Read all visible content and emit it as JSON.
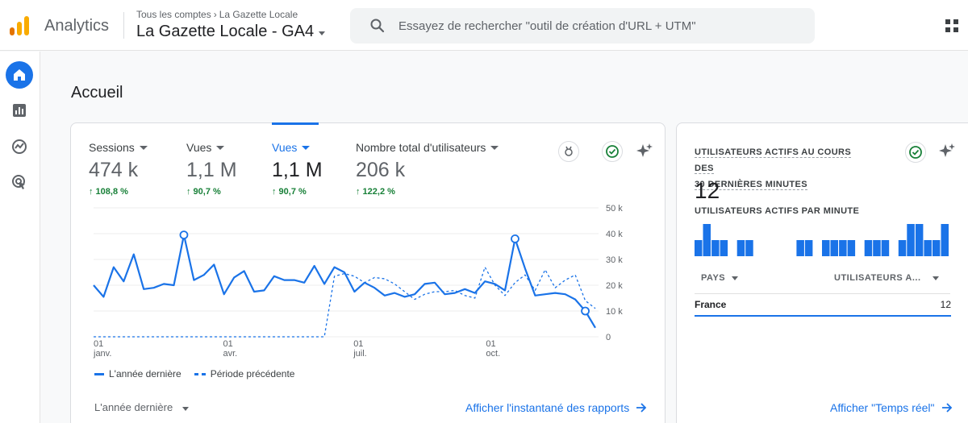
{
  "header": {
    "app_name": "Analytics",
    "breadcrumb": [
      "Tous les comptes",
      "La Gazette Locale"
    ],
    "property": "La Gazette Locale - GA4",
    "search_placeholder": "Essayez de rechercher \"outil de création d'URL + UTM\""
  },
  "rail": {
    "items": [
      "home-icon",
      "reports-icon",
      "explore-icon",
      "advertising-icon"
    ]
  },
  "page": {
    "title": "Accueil"
  },
  "main_card": {
    "metrics": [
      {
        "label": "Sessions",
        "value": "474 k",
        "delta": "↑ 108,8 %",
        "selected": false
      },
      {
        "label": "Vues",
        "value": "1,1 M",
        "delta": "↑ 90,7 %",
        "selected": false
      },
      {
        "label": "Vues",
        "value": "1,1 M",
        "delta": "↑ 90,7 %",
        "selected": true
      },
      {
        "label": "Nombre total d'utilisateurs",
        "value": "206 k",
        "delta": "↑ 122,2 %",
        "selected": false
      }
    ],
    "legend": {
      "current": "L'année dernière",
      "previous": "Période précédente"
    },
    "period_selector": "L'année dernière",
    "link": "Afficher l'instantané des rapports",
    "accent": "#1a73e8",
    "positive": "#188038"
  },
  "chart_data": {
    "type": "line",
    "y_ticks": [
      "50 k",
      "40 k",
      "30 k",
      "20 k",
      "10 k",
      "0"
    ],
    "ylim": [
      0,
      50000
    ],
    "x_ticks": [
      {
        "day": "01",
        "month": "janv."
      },
      {
        "day": "01",
        "month": "avr."
      },
      {
        "day": "01",
        "month": "juil."
      },
      {
        "day": "01",
        "month": "oct."
      }
    ],
    "x_tick_weeks": [
      0,
      12.9,
      25.9,
      39.1
    ],
    "series": [
      {
        "name": "L'année dernière",
        "style": "solid",
        "values": [
          20000,
          15500,
          27000,
          21500,
          32000,
          18500,
          19000,
          20500,
          20000,
          39500,
          22000,
          24000,
          28000,
          16500,
          23000,
          25500,
          17500,
          18000,
          23500,
          22000,
          22000,
          21000,
          27500,
          20500,
          27000,
          25000,
          17500,
          21000,
          19000,
          16000,
          17000,
          15500,
          16500,
          20500,
          21000,
          16500,
          17000,
          18500,
          17000,
          21500,
          20500,
          18000,
          38000,
          26500,
          16000,
          16500,
          17000,
          16500,
          14500,
          10000,
          3500
        ]
      },
      {
        "name": "Période précédente",
        "style": "dashed",
        "values": [
          0,
          0,
          0,
          0,
          0,
          0,
          0,
          0,
          0,
          0,
          0,
          0,
          0,
          0,
          0,
          0,
          0,
          0,
          0,
          0,
          0,
          0,
          0,
          0,
          23500,
          24500,
          23500,
          21000,
          23000,
          22500,
          20500,
          17500,
          14500,
          16500,
          17500,
          17500,
          18000,
          16000,
          15000,
          27000,
          20000,
          16000,
          21000,
          24000,
          18000,
          26000,
          19000,
          22000,
          24000,
          14000,
          11000
        ]
      }
    ],
    "highlighted_points": [
      9,
      42,
      49
    ]
  },
  "realtime_card": {
    "title": "UTILISATEURS ACTIFS AU COURS DES 30 DERNIÈRES MINUTES",
    "title_lines": [
      "UTILISATEURS ACTIFS AU COURS DES",
      "30 DERNIÈRES MINUTES"
    ],
    "count": "12",
    "per_minute_label": "UTILISATEURS ACTIFS PAR MINUTE",
    "per_minute": [
      1,
      2,
      1,
      1,
      0,
      1,
      1,
      0,
      0,
      0,
      0,
      0,
      1,
      1,
      0,
      1,
      1,
      1,
      1,
      0,
      1,
      1,
      1,
      0,
      1,
      2,
      2,
      1,
      1,
      2
    ],
    "table": {
      "headers": [
        "PAYS",
        "UTILISATEURS A..."
      ],
      "rows": [
        {
          "country": "France",
          "users": "12"
        }
      ]
    },
    "link": "Afficher \"Temps réel\""
  }
}
